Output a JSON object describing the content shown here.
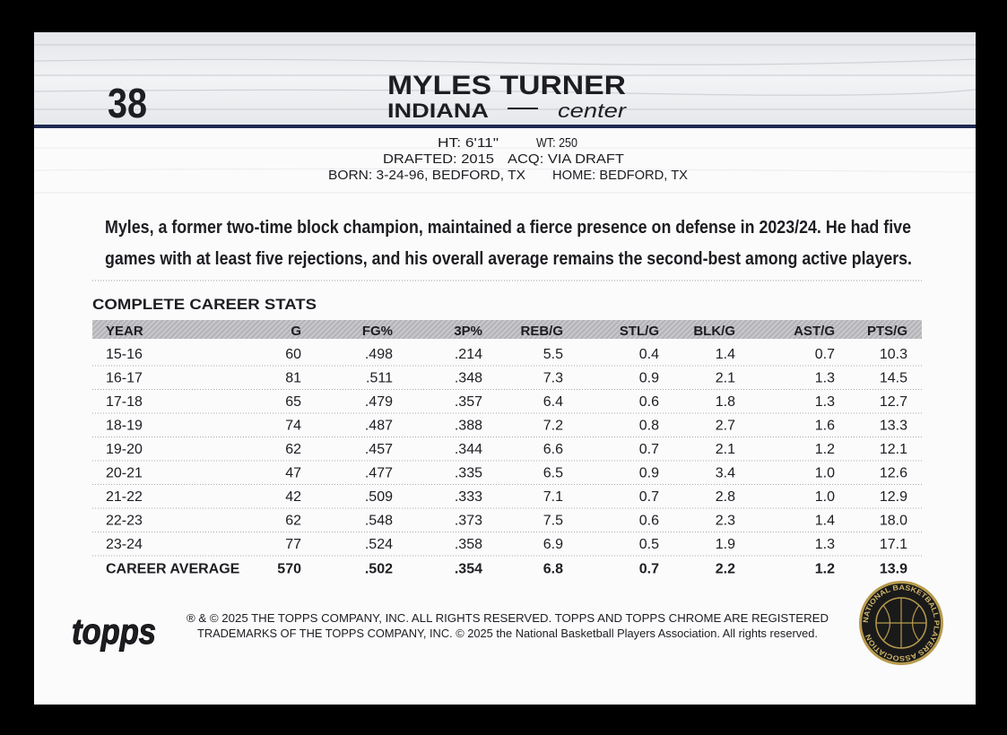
{
  "header": {
    "number": "38",
    "name": "MYLES TURNER",
    "team": "INDIANA",
    "position": "center"
  },
  "bio": {
    "ht": "HT: 6'11\"",
    "wt": "WT: 250",
    "drafted": "DRAFTED: 2015",
    "acq": "ACQ: VIA DRAFT",
    "born": "BORN: 3-24-96, BEDFORD, TX",
    "home": "HOME: BEDFORD, TX"
  },
  "blurb": [
    "Myles, a former two-time block champion, maintained a fierce presence on defense in 2023/24. He had five",
    "games with at least five rejections, and his overall average remains the second-best among active players."
  ],
  "stats": {
    "title": "COMPLETE CAREER STATS",
    "columns": [
      "YEAR",
      "G",
      "FG%",
      "3P%",
      "REB/G",
      "STL/G",
      "BLK/G",
      "AST/G",
      "PTS/G"
    ],
    "rows": [
      [
        "15-16",
        "60",
        ".498",
        ".214",
        "5.5",
        "0.4",
        "1.4",
        "0.7",
        "10.3"
      ],
      [
        "16-17",
        "81",
        ".511",
        ".348",
        "7.3",
        "0.9",
        "2.1",
        "1.3",
        "14.5"
      ],
      [
        "17-18",
        "65",
        ".479",
        ".357",
        "6.4",
        "0.6",
        "1.8",
        "1.3",
        "12.7"
      ],
      [
        "18-19",
        "74",
        ".487",
        ".388",
        "7.2",
        "0.8",
        "2.7",
        "1.6",
        "13.3"
      ],
      [
        "19-20",
        "62",
        ".457",
        ".344",
        "6.6",
        "0.7",
        "2.1",
        "1.2",
        "12.1"
      ],
      [
        "20-21",
        "47",
        ".477",
        ".335",
        "6.5",
        "0.9",
        "3.4",
        "1.0",
        "12.6"
      ],
      [
        "21-22",
        "42",
        ".509",
        ".333",
        "7.1",
        "0.7",
        "2.8",
        "1.0",
        "12.9"
      ],
      [
        "22-23",
        "62",
        ".548",
        ".373",
        "7.5",
        "0.6",
        "2.3",
        "1.4",
        "18.0"
      ],
      [
        "23-24",
        "77",
        ".524",
        ".358",
        "6.9",
        "0.5",
        "1.9",
        "1.3",
        "17.1"
      ]
    ],
    "career": [
      "CAREER AVERAGE",
      "570",
      ".502",
      ".354",
      "6.8",
      "0.7",
      "2.2",
      "1.2",
      "13.9"
    ]
  },
  "footer": {
    "logo": "topps",
    "copyright": [
      "® & © 2025 THE TOPPS COMPANY, INC. ALL RIGHTS RESERVED. TOPPS AND TOPPS CHROME ARE REGISTERED",
      "TRADEMARKS OF THE TOPPS COMPANY, INC. © 2025 the National Basketball Players Association. All rights reserved."
    ],
    "badge": "NATIONAL BASKETBALL PLAYERS ASSOCIATION"
  }
}
